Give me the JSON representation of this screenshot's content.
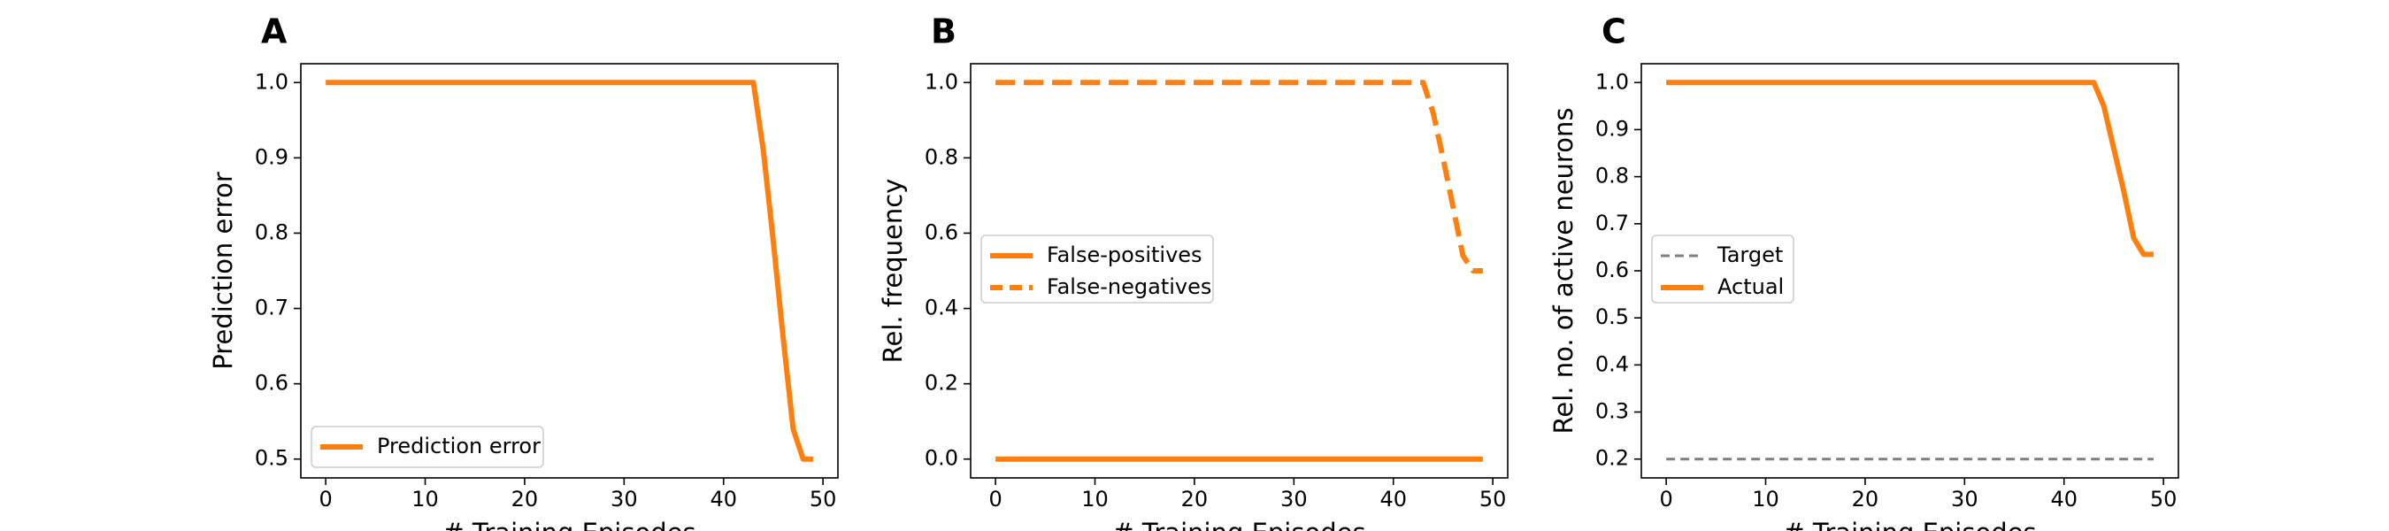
{
  "chart_data": [
    {
      "panel": "A",
      "type": "line",
      "xlabel": "# Training Episodes",
      "ylabel": "Prediction error",
      "xlim": [
        -2.5,
        51.5
      ],
      "ylim": [
        0.475,
        1.025
      ],
      "xticks": [
        0,
        10,
        20,
        30,
        40,
        50
      ],
      "yticks": [
        0.5,
        0.6,
        0.7,
        0.8,
        0.9,
        1.0
      ],
      "ytick_decimals": 1,
      "legend_position": "lower-left",
      "series": [
        {
          "name": "Prediction error",
          "color": "#ff7f0e",
          "style": "solid",
          "width": 6,
          "x": [
            0,
            43,
            44,
            45,
            46,
            47,
            48,
            49
          ],
          "y": [
            1.0,
            1.0,
            0.91,
            0.79,
            0.66,
            0.54,
            0.5,
            0.5
          ]
        }
      ]
    },
    {
      "panel": "B",
      "type": "line",
      "xlabel": "# Training Episodes",
      "ylabel": "Rel. frequency",
      "xlim": [
        -2.5,
        51.5
      ],
      "ylim": [
        -0.05,
        1.05
      ],
      "xticks": [
        0,
        10,
        20,
        30,
        40,
        50
      ],
      "yticks": [
        0.0,
        0.2,
        0.4,
        0.6,
        0.8,
        1.0
      ],
      "ytick_decimals": 1,
      "legend_position": "center-left",
      "series": [
        {
          "name": "False-positives",
          "color": "#ff7f0e",
          "style": "solid",
          "width": 6,
          "x": [
            0,
            49
          ],
          "y": [
            0.0,
            0.0
          ]
        },
        {
          "name": "False-negatives",
          "color": "#ff7f0e",
          "style": "dashed",
          "width": 6,
          "x": [
            0,
            43,
            44,
            45,
            46,
            47,
            48,
            49
          ],
          "y": [
            1.0,
            1.0,
            0.92,
            0.8,
            0.67,
            0.54,
            0.5,
            0.5
          ]
        }
      ]
    },
    {
      "panel": "C",
      "type": "line",
      "xlabel": "# Training Episodes",
      "ylabel": "Rel. no. of active neurons",
      "xlim": [
        -2.5,
        51.5
      ],
      "ylim": [
        0.16,
        1.04
      ],
      "xticks": [
        0,
        10,
        20,
        30,
        40,
        50
      ],
      "yticks": [
        0.2,
        0.3,
        0.4,
        0.5,
        0.6,
        0.7,
        0.8,
        0.9,
        1.0
      ],
      "ytick_decimals": 1,
      "legend_position": "center-left",
      "series": [
        {
          "name": "Target",
          "color": "#7f7f7f",
          "style": "dashed",
          "width": 3,
          "x": [
            0,
            49
          ],
          "y": [
            0.2,
            0.2
          ]
        },
        {
          "name": "Actual",
          "color": "#ff7f0e",
          "style": "solid",
          "width": 6,
          "x": [
            0,
            43,
            44,
            45,
            46,
            47,
            48,
            49
          ],
          "y": [
            1.0,
            1.0,
            0.95,
            0.86,
            0.77,
            0.67,
            0.635,
            0.635
          ]
        }
      ]
    }
  ]
}
